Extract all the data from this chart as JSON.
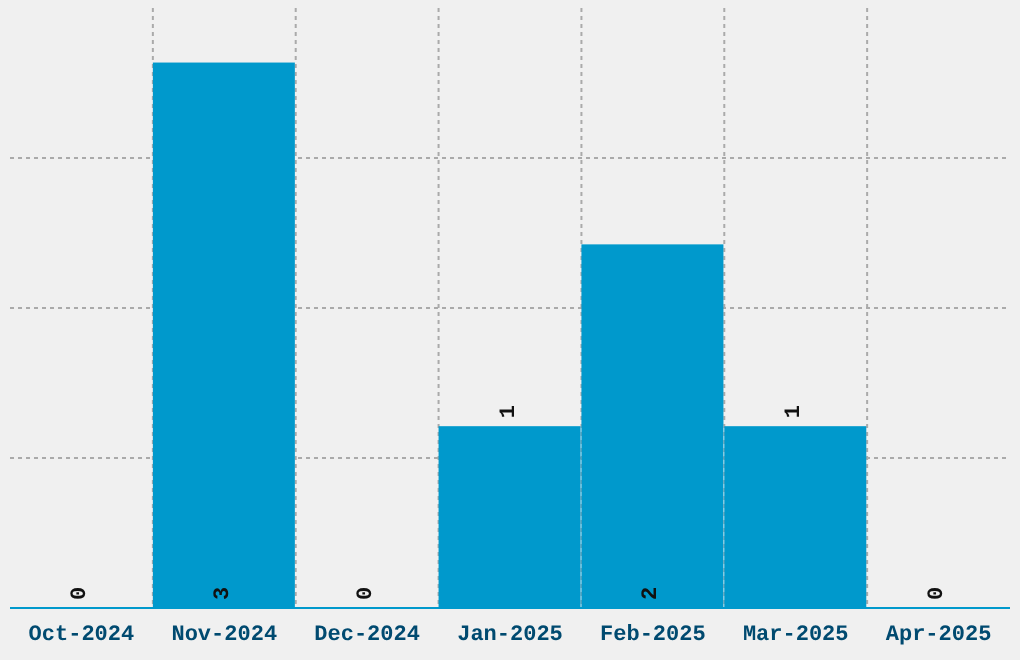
{
  "chart_data": {
    "type": "bar",
    "categories": [
      "Oct-2024",
      "Nov-2024",
      "Dec-2024",
      "Jan-2025",
      "Feb-2025",
      "Mar-2025",
      "Apr-2025"
    ],
    "values": [
      0,
      3,
      0,
      1,
      2,
      1,
      0
    ],
    "color": "#0099cc",
    "tick_labels": "x",
    "grid": true,
    "data_labels": true
  }
}
